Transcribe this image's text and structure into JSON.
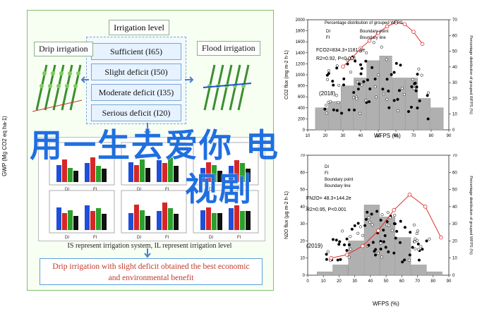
{
  "left_panel": {
    "level_title": "Irrigation level",
    "levels": [
      "Sufficient (I65)",
      "Slight deficit (I50)",
      "Moderate deficit (I35)",
      "Serious deficit (I20)"
    ],
    "drip_title": "Drip irrigation",
    "flood_title": "Flood irrigation",
    "note": "IS represent irrigation system, IL represent irrigation level",
    "conclusion_line1": "Drip irrigation with slight deficit obtained the best economic",
    "conclusion_line2": "and environmental benefit",
    "mini_ylabels": [
      "GWP (Mg CO2 eq ha-1)",
      "Grain yield (kg ha-1)",
      "WUE (kg ha-1 mm-1)"
    ],
    "mini_xlabels": [
      "DI",
      "FI"
    ]
  },
  "watermark": {
    "line1": "用一生去爱你 电",
    "line2": "视剧"
  },
  "charts": [
    {
      "year": "(2018)",
      "ylabel": "CO2 flux (mg m-2 h-1)",
      "y2label": "Percentage distribution of grouped WFPS (%)",
      "xlabel": "WFPS (%)",
      "legend": [
        "Percentage distribution of grouped WFPS",
        "DI",
        "FI",
        "Boundary point",
        "Boundary line"
      ],
      "equation": "FCO2=834.3+1181.1e",
      "r2": "R2=0.92, P<0.001"
    },
    {
      "year": "(2019)",
      "ylabel": "N2O flux (μg m-2 h-1)",
      "y2label": "Percentage distribution of grouped WFPS (%)",
      "xlabel": "WFPS (%)",
      "legend": [
        "Percentage distribution of grouped WFPS",
        "DI",
        "FI",
        "Boundary point",
        "Boundary line"
      ],
      "equation": "FN2O= 48.3+144.2e",
      "r2": "R2=0.95, P<0.001"
    }
  ],
  "chart_data": [
    {
      "type": "bar",
      "title": "",
      "xlabel": "WFPS (%)",
      "ylabel": "CO2 flux (mg m-2 h-1)",
      "x_ticks": [
        10,
        20,
        30,
        40,
        50,
        60,
        70,
        80,
        90
      ],
      "y_ticks": [
        0,
        200,
        400,
        600,
        800,
        1000,
        1200,
        1400,
        1600,
        1800,
        2000
      ],
      "y2_ticks": [
        0,
        10,
        20,
        30,
        40,
        50,
        60,
        70
      ],
      "categories": [
        "25-30",
        "30-35",
        "35-40",
        "40-45",
        "45-50",
        "50-55",
        "55-60",
        "60-65",
        "65-70",
        "70-75"
      ],
      "values": [
        14,
        18,
        28,
        33,
        44,
        47,
        33,
        33,
        20,
        14
      ],
      "boundary_line": {
        "x": [
          30,
          35,
          40,
          45,
          50,
          55,
          60,
          65,
          70,
          75
        ],
        "y": [
          1150,
          1300,
          1480,
          1620,
          1760,
          1880,
          1950,
          1920,
          1780,
          1560
        ]
      }
    },
    {
      "type": "bar",
      "title": "",
      "xlabel": "WFPS (%)",
      "ylabel": "N2O flux (μg m-2 h-1)",
      "x_ticks": [
        0,
        10,
        20,
        30,
        40,
        50,
        60,
        70,
        80,
        90
      ],
      "y_ticks": [
        0,
        10,
        20,
        30,
        40,
        50,
        60,
        70
      ],
      "y2_ticks": [
        0,
        10,
        20,
        30,
        40,
        50,
        60,
        70
      ],
      "categories": [
        "10-20",
        "20-30",
        "30-40",
        "40-50",
        "50-60",
        "60-70",
        "70-80",
        "80-90"
      ],
      "values": [
        2,
        6,
        20,
        41,
        34,
        22,
        6,
        2
      ],
      "boundary_line": {
        "x": [
          15,
          25,
          35,
          45,
          55,
          65,
          75,
          85
        ],
        "y": [
          10,
          12,
          17,
          26,
          38,
          47,
          40,
          22
        ]
      }
    }
  ]
}
